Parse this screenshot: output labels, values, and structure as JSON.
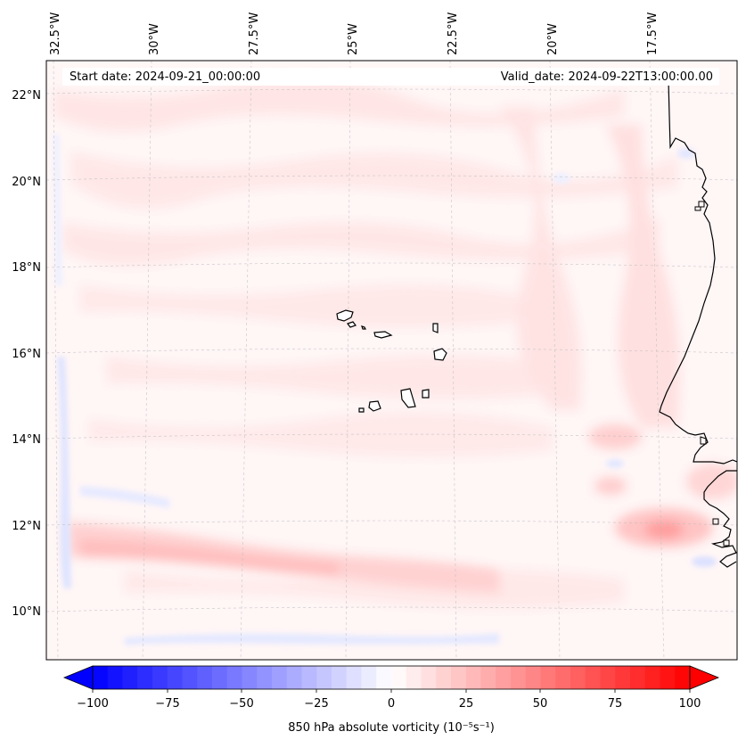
{
  "map": {
    "start_date": "Start date: 2024-09-21_00:00:00",
    "valid_date": "Valid_date: 2024-09-22T13:00:00.00",
    "lon_labels": [
      "32.5°W",
      "30°W",
      "27.5°W",
      "25°W",
      "22.5°W",
      "20°W",
      "17.5°W"
    ],
    "lat_labels": [
      "22°N",
      "20°N",
      "18°N",
      "16°N",
      "14°N",
      "12°N",
      "10°N"
    ],
    "colors": {
      "negative_max": "#0000ff",
      "zero": "#ffffff",
      "positive_max": "#ff0000",
      "land_outline": "#000000"
    }
  },
  "colorbar": {
    "label": "850 hPa absolute vorticity (10⁻⁵s⁻¹)",
    "range": [
      -100,
      100
    ],
    "ticks": [
      "−100",
      "−75",
      "−50",
      "−25",
      "0",
      "25",
      "50",
      "75",
      "100"
    ]
  }
}
